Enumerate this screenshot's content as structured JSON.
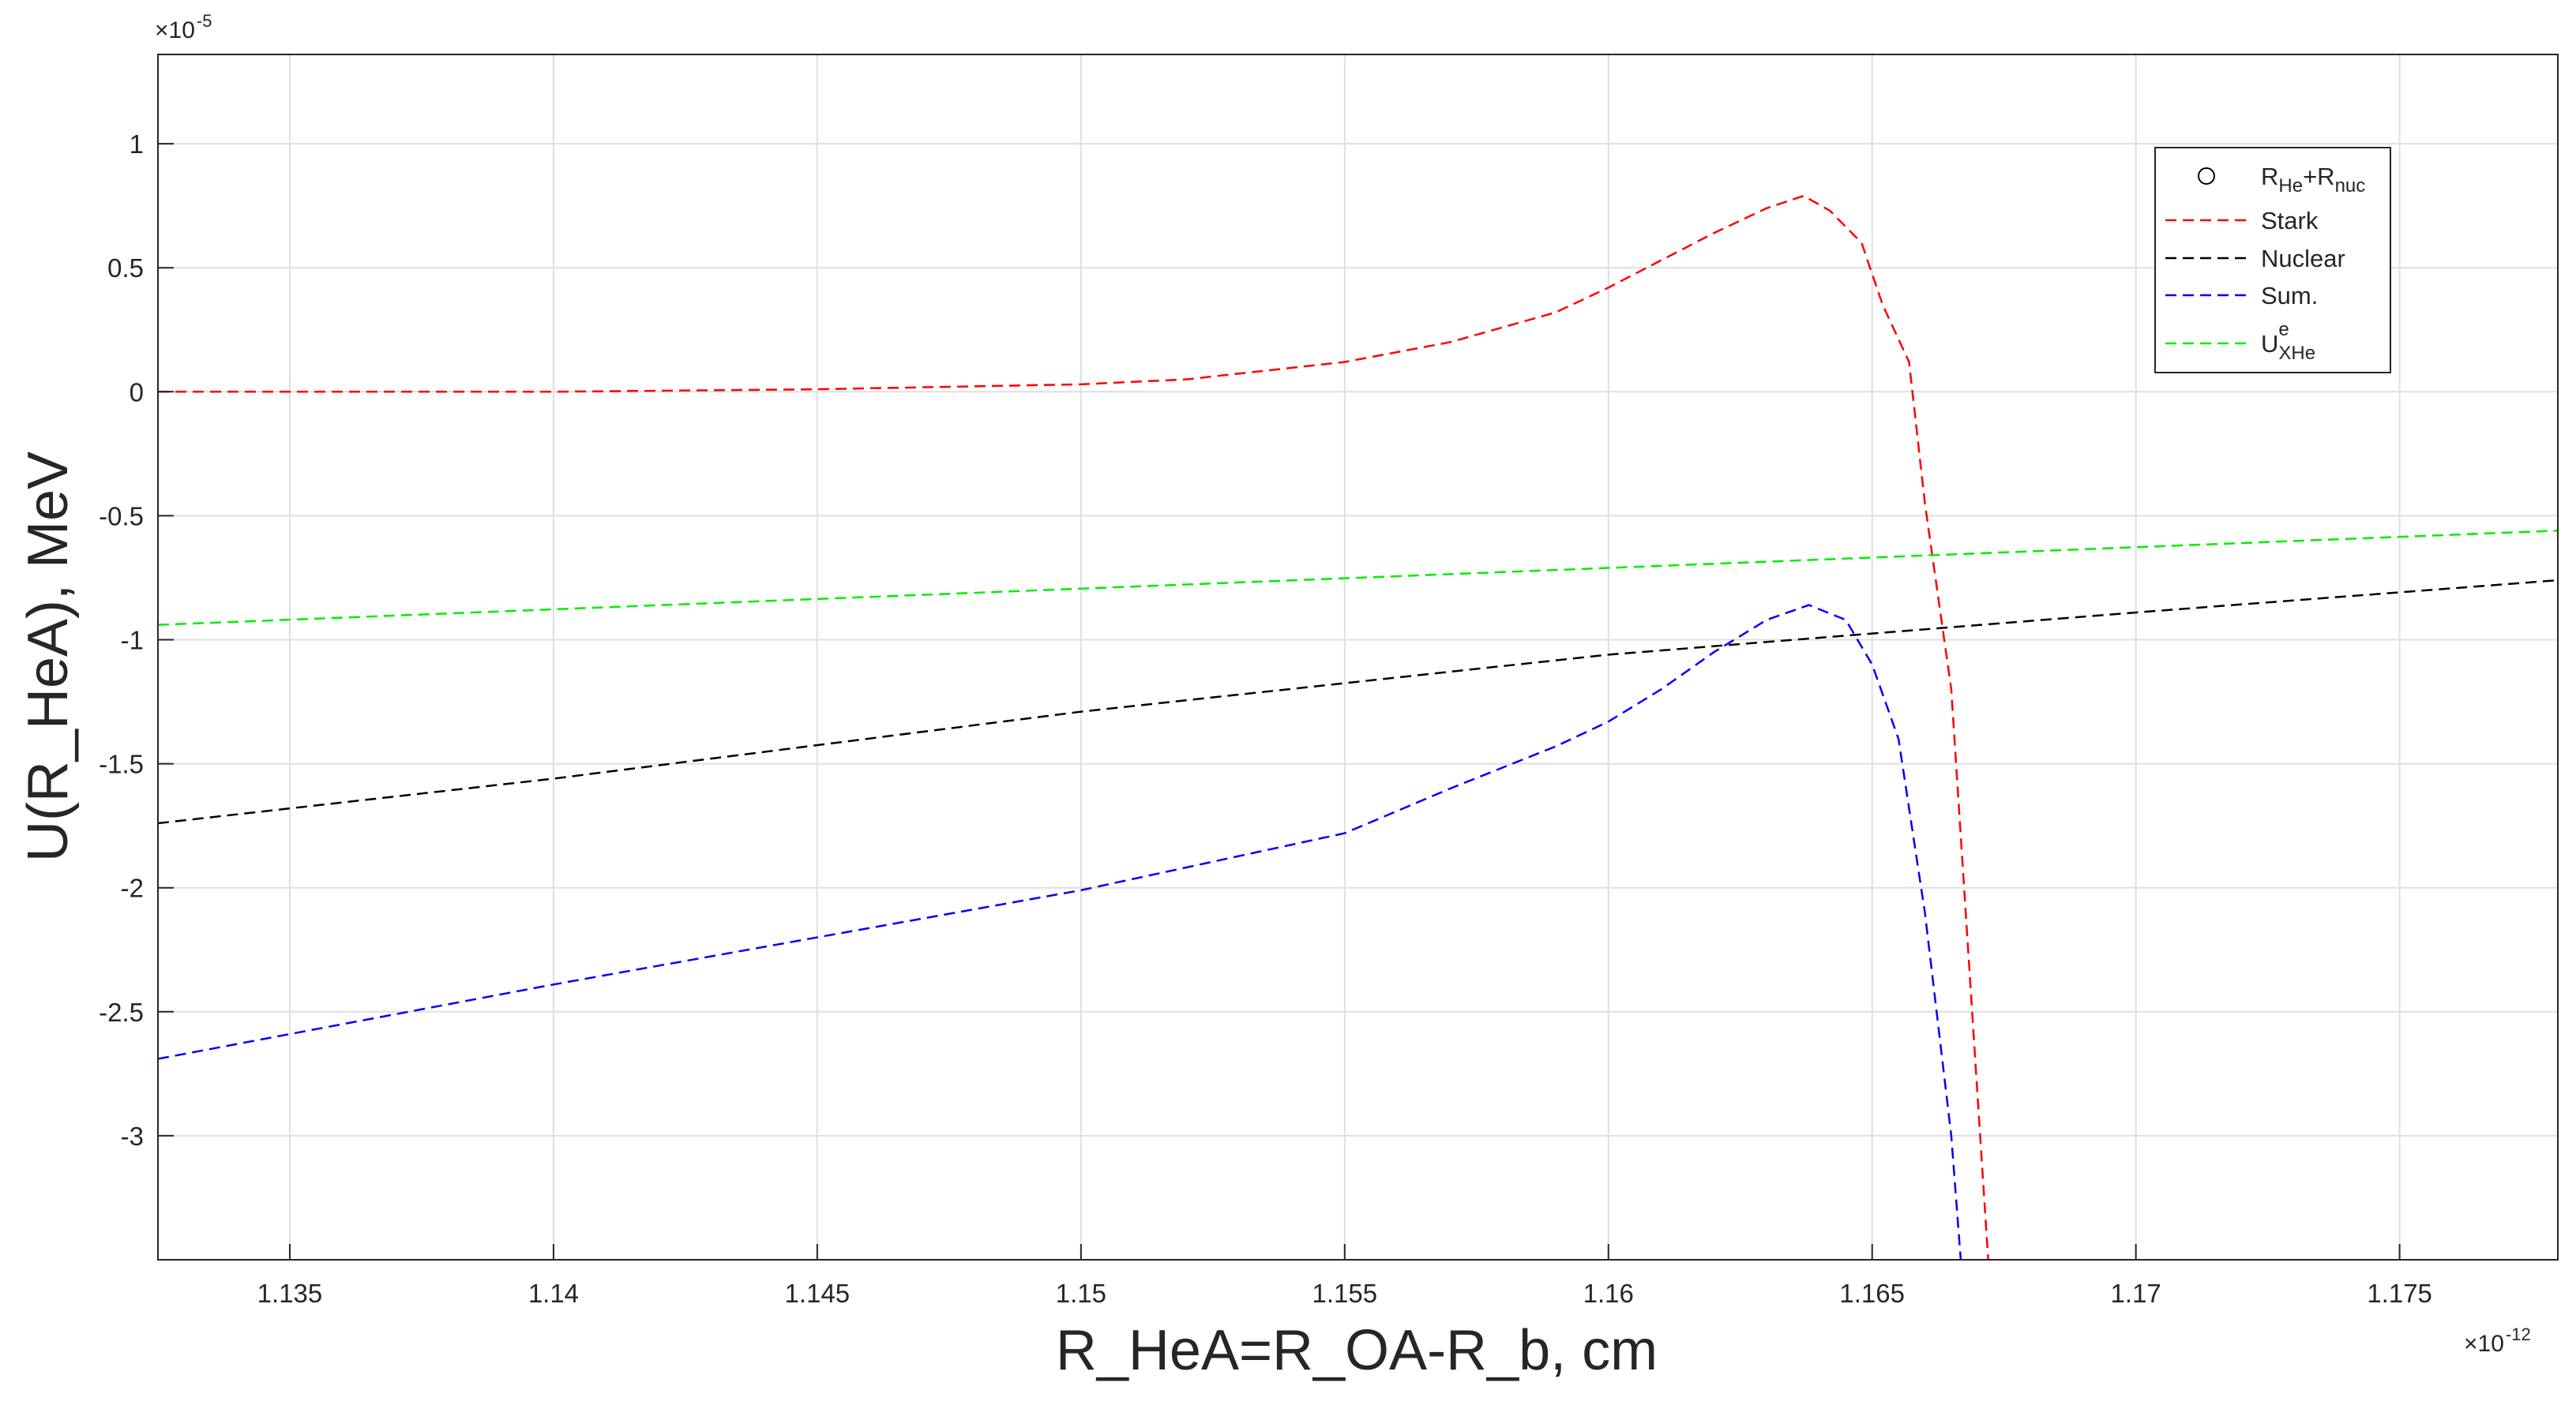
{
  "chart_data": {
    "type": "line",
    "xlabel": "R_HeA=R_OA-R_b, cm",
    "ylabel": "U(R_HeA), MeV",
    "x_multiplier": {
      "base": "×10",
      "exp": "-12"
    },
    "y_multiplier": {
      "base": "×10",
      "exp": "-5"
    },
    "xlim": [
      1.1325,
      1.178
    ],
    "ylim": [
      -3.5,
      1.36
    ],
    "xticks": [
      1.135,
      1.14,
      1.145,
      1.15,
      1.155,
      1.16,
      1.165,
      1.17,
      1.175
    ],
    "yticks": [
      -3,
      -2.5,
      -2,
      -1.5,
      -1,
      -0.5,
      0,
      0.5,
      1
    ],
    "grid": true,
    "legend": "northeast",
    "series": [
      {
        "name": [
          {
            "text": "R"
          },
          {
            "text": "He",
            "sub": true
          },
          {
            "text": "+R"
          },
          {
            "text": "nuc",
            "sub": true
          }
        ],
        "marker": "circle",
        "color": "#000000",
        "x": [],
        "values": []
      },
      {
        "name": "Stark",
        "color": "#ff0000",
        "dash": true,
        "x": [
          1.1325,
          1.14,
          1.145,
          1.15,
          1.152,
          1.155,
          1.157,
          1.159,
          1.16,
          1.161,
          1.162,
          1.163,
          1.1637,
          1.1642,
          1.1648,
          1.1652,
          1.1657,
          1.166,
          1.1665,
          1.1672
        ],
        "values": [
          0,
          0,
          0.01,
          0.03,
          0.05,
          0.12,
          0.2,
          0.32,
          0.42,
          0.53,
          0.64,
          0.74,
          0.79,
          0.73,
          0.6,
          0.35,
          0.12,
          -0.45,
          -1.2,
          -3.5
        ]
      },
      {
        "name": "Nuclear",
        "color": "#000000",
        "dash": true,
        "x": [
          1.1325,
          1.14,
          1.15,
          1.16,
          1.17,
          1.178
        ],
        "values": [
          -1.74,
          -1.56,
          -1.29,
          -1.06,
          -0.89,
          -0.76
        ]
      },
      {
        "name": "Sum.",
        "color": "#0000ff",
        "dash": true,
        "x": [
          1.1325,
          1.14,
          1.145,
          1.15,
          1.155,
          1.157,
          1.159,
          1.16,
          1.161,
          1.162,
          1.163,
          1.1638,
          1.1645,
          1.165,
          1.1655,
          1.166,
          1.1665,
          1.16668
        ],
        "values": [
          -2.69,
          -2.39,
          -2.2,
          -2.01,
          -1.78,
          -1.6,
          -1.43,
          -1.33,
          -1.2,
          -1.05,
          -0.92,
          -0.86,
          -0.92,
          -1.1,
          -1.4,
          -2.1,
          -3.0,
          -3.5
        ]
      },
      {
        "name": [
          {
            "text": "U"
          },
          {
            "text": "e",
            "sup": true
          },
          {
            "text": "XHe",
            "sub": true
          }
        ],
        "color": "#00ee00",
        "dash": true,
        "x": [
          1.1325,
          1.178
        ],
        "values": [
          -0.94,
          -0.56
        ]
      }
    ]
  }
}
